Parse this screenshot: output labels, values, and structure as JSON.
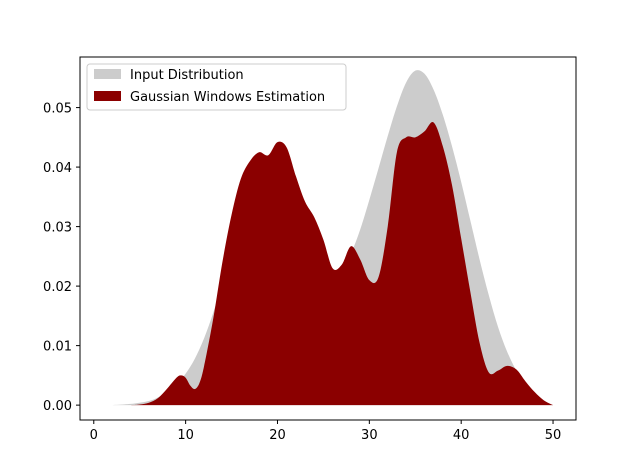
{
  "chart_data": {
    "type": "area",
    "title": "",
    "xlabel": "",
    "ylabel": "",
    "xlim": [
      -1.5,
      52.5
    ],
    "ylim": [
      -0.0025,
      0.0585
    ],
    "xticks": [
      0,
      10,
      20,
      30,
      40,
      50
    ],
    "xtick_labels": [
      "0",
      "10",
      "20",
      "30",
      "40",
      "50"
    ],
    "yticks": [
      0.0,
      0.01,
      0.02,
      0.03,
      0.04,
      0.05
    ],
    "ytick_labels": [
      "0.00",
      "0.01",
      "0.02",
      "0.03",
      "0.04",
      "0.05"
    ],
    "grid": false,
    "legend": {
      "placement": "top-left"
    },
    "series": [
      {
        "name": "Input Distribution",
        "color": "#cccccc",
        "x": [
          2,
          4,
          6,
          7,
          8,
          9,
          10,
          11,
          12,
          13,
          14,
          15,
          16,
          17,
          18,
          19,
          20,
          21,
          22,
          23,
          24,
          25,
          26,
          27,
          28,
          29,
          30,
          31,
          32,
          33,
          34,
          35,
          36,
          37,
          38,
          39,
          40,
          41,
          42,
          43,
          44,
          45,
          46,
          47,
          48,
          49,
          50
        ],
        "y": [
          0.0,
          0.0002,
          0.0007,
          0.0013,
          0.0022,
          0.0035,
          0.0053,
          0.0078,
          0.0112,
          0.0155,
          0.0205,
          0.026,
          0.0315,
          0.0362,
          0.0395,
          0.041,
          0.0408,
          0.0388,
          0.0352,
          0.0308,
          0.0268,
          0.0238,
          0.0225,
          0.023,
          0.0255,
          0.0295,
          0.0345,
          0.0398,
          0.0452,
          0.0502,
          0.0542,
          0.0562,
          0.0557,
          0.053,
          0.0488,
          0.0435,
          0.0375,
          0.031,
          0.0245,
          0.0185,
          0.0132,
          0.009,
          0.0058,
          0.0035,
          0.0018,
          0.0007,
          0.0
        ]
      },
      {
        "name": "Gaussian Windows Estimation",
        "color": "#8b0000",
        "x": [
          2,
          4,
          5,
          6,
          7,
          8,
          9,
          9.5,
          10,
          10.5,
          11,
          11.5,
          12,
          13,
          14,
          15,
          16,
          17,
          18,
          19,
          20,
          21,
          22,
          23,
          24,
          25,
          26,
          27,
          28,
          29,
          30,
          31,
          32,
          33,
          34,
          35,
          36,
          37,
          38,
          39,
          40,
          41,
          42,
          43,
          44,
          45,
          46,
          47,
          48,
          49,
          50
        ],
        "y": [
          0.0,
          0.0,
          0.0001,
          0.0004,
          0.0012,
          0.0028,
          0.0046,
          0.005,
          0.0046,
          0.0033,
          0.0027,
          0.0037,
          0.0065,
          0.0145,
          0.024,
          0.032,
          0.038,
          0.041,
          0.0425,
          0.042,
          0.0442,
          0.0433,
          0.0385,
          0.0342,
          0.0316,
          0.0278,
          0.023,
          0.0236,
          0.0267,
          0.0245,
          0.021,
          0.0215,
          0.03,
          0.0425,
          0.045,
          0.045,
          0.046,
          0.0475,
          0.0435,
          0.037,
          0.028,
          0.019,
          0.0105,
          0.0055,
          0.0058,
          0.0066,
          0.006,
          0.004,
          0.0022,
          0.0008,
          0.0
        ]
      }
    ]
  }
}
